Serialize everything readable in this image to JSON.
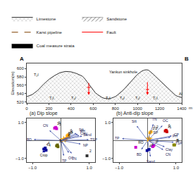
{
  "chart_data": [
    {
      "type": "area",
      "ylabel": "Elevation(m)",
      "xlabel": "m",
      "xlim": [
        0,
        1400
      ],
      "ylim": [
        518,
        612
      ],
      "xticks": [
        0,
        200,
        400,
        600,
        800,
        1000,
        1200,
        1400
      ],
      "yticks": [
        520,
        540,
        560,
        580,
        600
      ],
      "grid": false,
      "legend": "upper left",
      "series": [
        {
          "name": "Limestone",
          "type": "area",
          "marker": "x",
          "color": "#aaaaaa",
          "x": [
            0,
            50,
            100,
            150,
            200,
            250,
            300,
            350,
            400,
            450,
            500,
            520,
            540,
            560,
            580,
            600,
            620,
            640,
            660,
            680,
            700,
            720,
            740,
            760,
            780,
            800,
            820,
            840,
            860,
            880,
            900,
            920,
            940,
            960,
            980,
            1000,
            1020,
            1040,
            1060,
            1080,
            1100,
            1120,
            1140,
            1160,
            1180,
            1200,
            1220,
            1240,
            1260,
            1280,
            1300,
            1320,
            1340,
            1360,
            1380,
            1400
          ],
          "values": [
            533,
            538,
            548,
            562,
            574,
            583,
            590,
            593,
            592,
            588,
            582,
            577,
            570,
            563,
            556,
            548,
            542,
            538,
            534,
            531,
            529,
            528,
            528,
            529,
            531,
            533,
            537,
            541,
            546,
            551,
            557,
            563,
            569,
            575,
            581,
            586,
            590,
            594,
            596,
            597,
            596,
            592,
            587,
            582,
            577,
            572,
            567,
            561,
            556,
            551,
            546,
            541,
            537,
            534,
            532,
            531
          ]
        },
        {
          "name": "Sandstone",
          "type": "area",
          "marker": "/",
          "color": "#555555"
        },
        {
          "name": "Karst pipeline",
          "type": "line",
          "line_style": "dashed",
          "color": "#996633"
        },
        {
          "name": "Fault",
          "type": "arrow",
          "color": "red",
          "x": [
            560,
            1090
          ],
          "from": [
            568,
            570
          ],
          "values": [
            537,
            537
          ],
          "tick_y": [
            555,
            550
          ],
          "tick_x": [
            [
              545,
              575
            ],
            [
              1075,
              1105
            ]
          ]
        },
        {
          "name": "Coal measure strata",
          "type": "area",
          "color": "black"
        }
      ],
      "annotations": [
        {
          "text": "T₂l",
          "x": 85,
          "y": 576
        },
        {
          "text": "T₁l",
          "x": 220,
          "y": 522
        },
        {
          "text": "T₂l",
          "x": 420,
          "y": 522
        },
        {
          "text": "T₁l",
          "x": 730,
          "y": 521
        },
        {
          "text": "T₃l",
          "x": 860,
          "y": 521
        },
        {
          "text": "T₁l",
          "x": 1000,
          "y": 521
        },
        {
          "text": "T₂l",
          "x": 1160,
          "y": 521
        },
        {
          "text": "Al",
          "x": 1390,
          "y": 531
        },
        {
          "text": "Yankun sinkhole",
          "x": 870,
          "y": 584
        },
        {
          "text": "A",
          "x": 0,
          "y": 612
        },
        {
          "text": "B",
          "x": 1400,
          "y": 612
        }
      ]
    },
    {
      "type": "biplot",
      "title": "(a) Dip slope",
      "xlim": [
        -1.2,
        1.2
      ],
      "ylim": [
        -1.2,
        1.2
      ],
      "xticks": [
        {
          "value": -1.0,
          "label": "−1.0"
        },
        {
          "value": 1.0,
          "label": "1.0"
        }
      ],
      "yticks": [
        {
          "value": -1.0,
          "label": "−1.0"
        },
        {
          "value": 1.0,
          "label": "1.0"
        }
      ],
      "grid": false,
      "series": [
        {
          "type": "arrow",
          "color": "#4455aa",
          "labels": [
            "TSP",
            "Sand",
            "Silt",
            "PH",
            "Clay",
            "NP",
            "OC",
            "TN",
            "TP",
            "CN",
            "BD"
          ],
          "x": [
            0.98,
            0.75,
            0.55,
            0.6,
            0.65,
            0.7,
            0.28,
            0.38,
            0.1,
            -0.4,
            -0.95
          ],
          "values": [
            0.04,
            0.24,
            0.4,
            0.35,
            0.28,
            -0.2,
            -0.68,
            -0.72,
            -0.85,
            0.55,
            0.05
          ]
        },
        {
          "type": "scatter",
          "name": "1",
          "marker": "square",
          "color": "#ffaa00",
          "x": [
            0.28,
            0.22,
            0.25
          ],
          "values": [
            0.2,
            0.25,
            0.3
          ]
        },
        {
          "type": "scatter",
          "name": "2",
          "marker": "square",
          "color": "#ff8800",
          "x": [
            0.18,
            0.15
          ],
          "values": [
            0.1,
            0.07
          ]
        },
        {
          "type": "scatter",
          "name": "3",
          "marker": "square",
          "color": "#cc00cc",
          "x": [
            -0.22,
            -0.18,
            -0.15
          ],
          "values": [
            0.68,
            0.72,
            0.65
          ]
        },
        {
          "type": "scatter",
          "name": "4",
          "marker": "square",
          "color": "#000099",
          "x": [
            -0.55,
            -0.6,
            -0.52
          ],
          "values": [
            -0.42,
            -0.48,
            -0.54
          ]
        },
        {
          "type": "scatter",
          "name": "5",
          "marker": "square",
          "color": "#666600",
          "x": [
            -0.12,
            -0.15,
            -0.1
          ],
          "values": [
            -0.25,
            -0.3,
            -0.35
          ]
        },
        {
          "type": "scatter",
          "name": "SP",
          "marker": "star",
          "color": "#ffaa00",
          "x": [
            0.1
          ],
          "values": [
            0.05
          ]
        },
        {
          "type": "scatter",
          "name": "2",
          "marker": "square",
          "color": "#333333",
          "x": [
            0.92
          ],
          "values": [
            -0.85
          ]
        },
        {
          "type": "scatter",
          "name": "Crop",
          "marker": "triangle",
          "color": "#000099",
          "x": [
            -0.6
          ],
          "values": [
            -0.62
          ]
        }
      ]
    },
    {
      "type": "biplot",
      "title": "(b) Anti-dip slope",
      "xlim": [
        -1.2,
        1.2
      ],
      "ylim": [
        -1.2,
        1.2
      ],
      "xticks": [
        {
          "value": -1.0,
          "label": "−1.0"
        },
        {
          "value": 1.0,
          "label": "1.0"
        }
      ],
      "yticks": [
        {
          "value": -1.0,
          "label": "−1.0"
        },
        {
          "value": 1.0,
          "label": "1.0"
        }
      ],
      "grid": false,
      "series": [
        {
          "type": "arrow",
          "color": "#4455aa",
          "labels": [
            "TN",
            "OC",
            "Silt",
            "TP",
            "CP",
            "PH",
            "TSP",
            "Clay",
            "CN",
            "Sand",
            "BD"
          ],
          "x": [
            0.2,
            0.52,
            -0.38,
            -0.9,
            0.85,
            0.8,
            0.92,
            0.6,
            0.55,
            0.1,
            -0.22
          ],
          "values": [
            0.9,
            0.82,
            0.8,
            0.1,
            0.25,
            0.18,
            -0.1,
            -0.35,
            -0.52,
            -0.9,
            -0.5
          ]
        },
        {
          "type": "scatter",
          "name": "1",
          "marker": "square",
          "color": "#cc0000",
          "x": [
            0.62,
            0.65,
            0.68
          ],
          "values": [
            0.52,
            0.56,
            0.48
          ]
        },
        {
          "type": "scatter",
          "name": "1,2",
          "marker": "square",
          "color": "#ffaa00",
          "x": [
            0.12,
            0.08
          ],
          "values": [
            0.48,
            0.42
          ]
        },
        {
          "type": "scatter",
          "name": "3",
          "marker": "square",
          "color": "#cc00cc",
          "x": [
            0.22,
            0.18
          ],
          "values": [
            -0.28,
            -0.34
          ]
        },
        {
          "type": "scatter",
          "name": "4",
          "marker": "square",
          "color": "#000099",
          "x": [
            0.05,
            -0.02
          ],
          "values": [
            -0.5,
            -0.56
          ]
        },
        {
          "type": "scatter",
          "name": "5",
          "marker": "square",
          "color": "#888800",
          "x": [
            0.92
          ],
          "values": [
            -0.25
          ]
        },
        {
          "type": "scatter",
          "name": "SP",
          "marker": "star",
          "color": "#ffaa00",
          "x": [
            0.05
          ],
          "values": [
            0.08
          ]
        },
        {
          "type": "scatter",
          "name": "RO",
          "marker": "square",
          "color": "#cc00cc",
          "x": [
            -0.42
          ],
          "values": [
            -0.38
          ]
        },
        {
          "type": "scatter",
          "name": "5",
          "marker": "square",
          "color": "#888800",
          "x": [
            0.95
          ],
          "values": [
            -0.25
          ]
        }
      ]
    }
  ]
}
